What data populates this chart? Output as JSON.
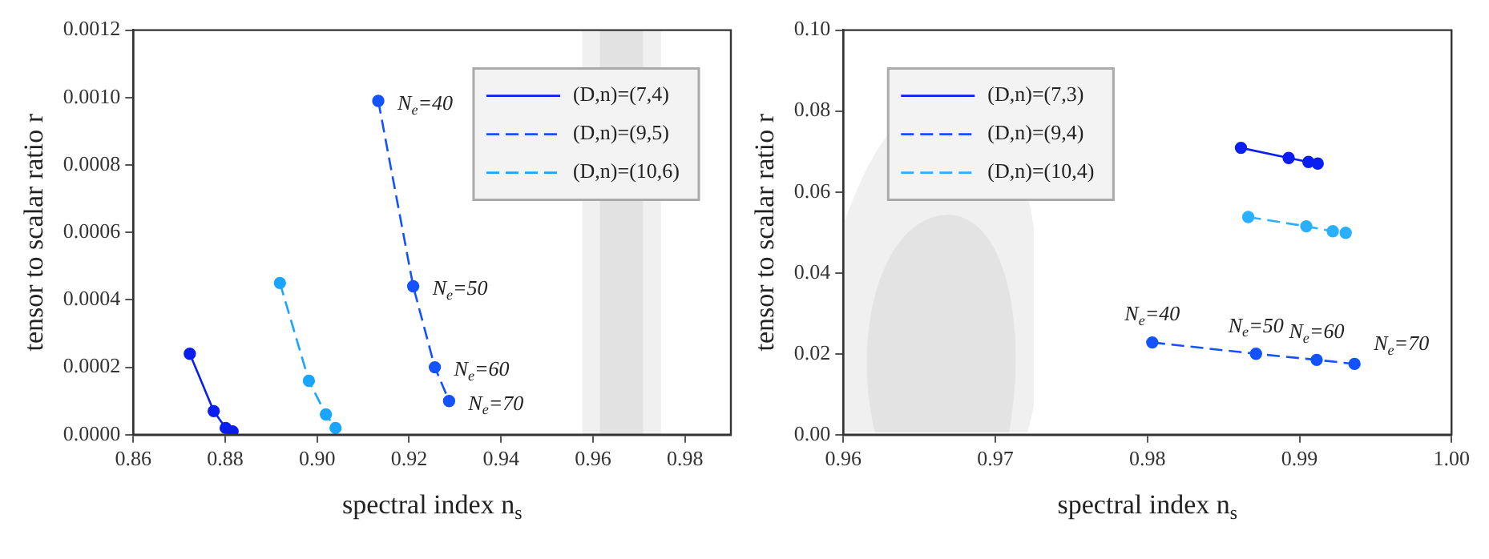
{
  "chart_data": [
    {
      "type": "line",
      "xlabel": "spectral index n$_{s}$",
      "ylabel": "tensor to scalar ratio r",
      "xlim": [
        0.86,
        0.99
      ],
      "ylim": [
        0,
        0.0012
      ],
      "xticks": [
        0.86,
        0.88,
        {
          "value": 0.9,
          "label": "0.90"
        },
        0.92,
        0.94,
        0.96,
        0.98
      ],
      "yticks": [
        {
          "value": 0,
          "label": "0.0000"
        },
        {
          "value": 0.0002,
          "label": "0.0002"
        },
        {
          "value": 0.0004,
          "label": "0.0004"
        },
        {
          "value": 0.0006,
          "label": "0.0006"
        },
        {
          "value": 0.0008,
          "label": "0.0008"
        },
        {
          "value": 0.001,
          "label": "0.0010"
        },
        {
          "value": 0.0012,
          "label": "0.0012"
        }
      ],
      "grid": false,
      "legend": "top right",
      "marker": "circle",
      "series": [
        {
          "name": "(D,n)=(7,4)",
          "color": "#0a1ef0",
          "line_style": "solid",
          "x": [
            0.8723,
            0.8775,
            0.8801,
            0.8816
          ],
          "values": [
            0.00024,
            7e-05,
            2e-05,
            1e-05
          ]
        },
        {
          "name": "(D,n)=(9,5)",
          "color": "#1452ff",
          "line_style": "dashed",
          "x": [
            0.9133,
            0.9209,
            0.9256,
            0.9287
          ],
          "values": [
            0.00099,
            0.00044,
            0.0002,
            0.0001
          ]
        },
        {
          "name": "(D,n)=(10,6)",
          "color": "#1aa6ff",
          "line_style": "dashed",
          "x": [
            0.8919,
            0.8982,
            0.9019,
            0.904
          ],
          "values": [
            0.00045,
            0.00016,
            6e-05,
            2e-05
          ]
        }
      ],
      "bands": [
        {
          "axis": "x",
          "from": 0.9577,
          "to": 0.9748,
          "color": "#f0f0f0"
        },
        {
          "axis": "x",
          "from": 0.9615,
          "to": 0.9709,
          "color": "#e2e2e2"
        }
      ],
      "annotations": [
        {
          "text": "N$_{e}$=40",
          "x": 0.9133,
          "y": 0.00099
        },
        {
          "text": "N$_{e}$=50",
          "x": 0.9209,
          "y": 0.00044
        },
        {
          "text": "N$_{e}$=60",
          "x": 0.9256,
          "y": 0.0002
        },
        {
          "text": "N$_{e}$=70",
          "x": 0.9287,
          "y": 0.0001
        }
      ]
    },
    {
      "type": "line",
      "xlabel": "spectral index n$_{s}$",
      "ylabel": "tensor to scalar ratio r",
      "xlim": [
        0.96,
        1.0
      ],
      "ylim": [
        0,
        0.1
      ],
      "xticks": [
        0.96,
        0.97,
        0.98,
        0.99,
        {
          "value": 1.0,
          "label": "1.00"
        }
      ],
      "yticks": [
        {
          "value": 0,
          "label": "0.00"
        },
        0.02,
        0.04,
        0.06,
        0.08,
        {
          "value": 0.1,
          "label": "0.10"
        }
      ],
      "grid": false,
      "legend": "top left",
      "marker": "circle",
      "series": [
        {
          "name": "(D,n)=(7,3)",
          "color": "#0a1ef0",
          "line_style": "solid",
          "x": [
            0.98615,
            0.98929,
            0.99059,
            0.9912
          ],
          "values": [
            0.0709,
            0.0684,
            0.0674,
            0.067
          ]
        },
        {
          "name": "(D,n)=(9,4)",
          "color": "#1452ff",
          "line_style": "dashed",
          "x": [
            0.98032,
            0.98714,
            0.99113,
            0.99362
          ],
          "values": [
            0.0228,
            0.02,
            0.0185,
            0.0175
          ]
        },
        {
          "name": "(D,n)=(10,4)",
          "color": "#2ab0ff",
          "line_style": "dashed",
          "x": [
            0.98663,
            0.99045,
            0.99219,
            0.99304
          ],
          "values": [
            0.0538,
            0.0515,
            0.0503,
            0.0499
          ]
        }
      ],
      "annotations": [
        {
          "text": "N$_{e}$=40",
          "x": 0.98032,
          "y": 0.0228
        },
        {
          "text": "N$_{e}$=50",
          "x": 0.98714,
          "y": 0.02
        },
        {
          "text": "N$_{e}$=60",
          "x": 0.99113,
          "y": 0.0185
        },
        {
          "text": "N$_{e}$=70",
          "x": 0.99362,
          "y": 0.0175
        }
      ]
    }
  ]
}
